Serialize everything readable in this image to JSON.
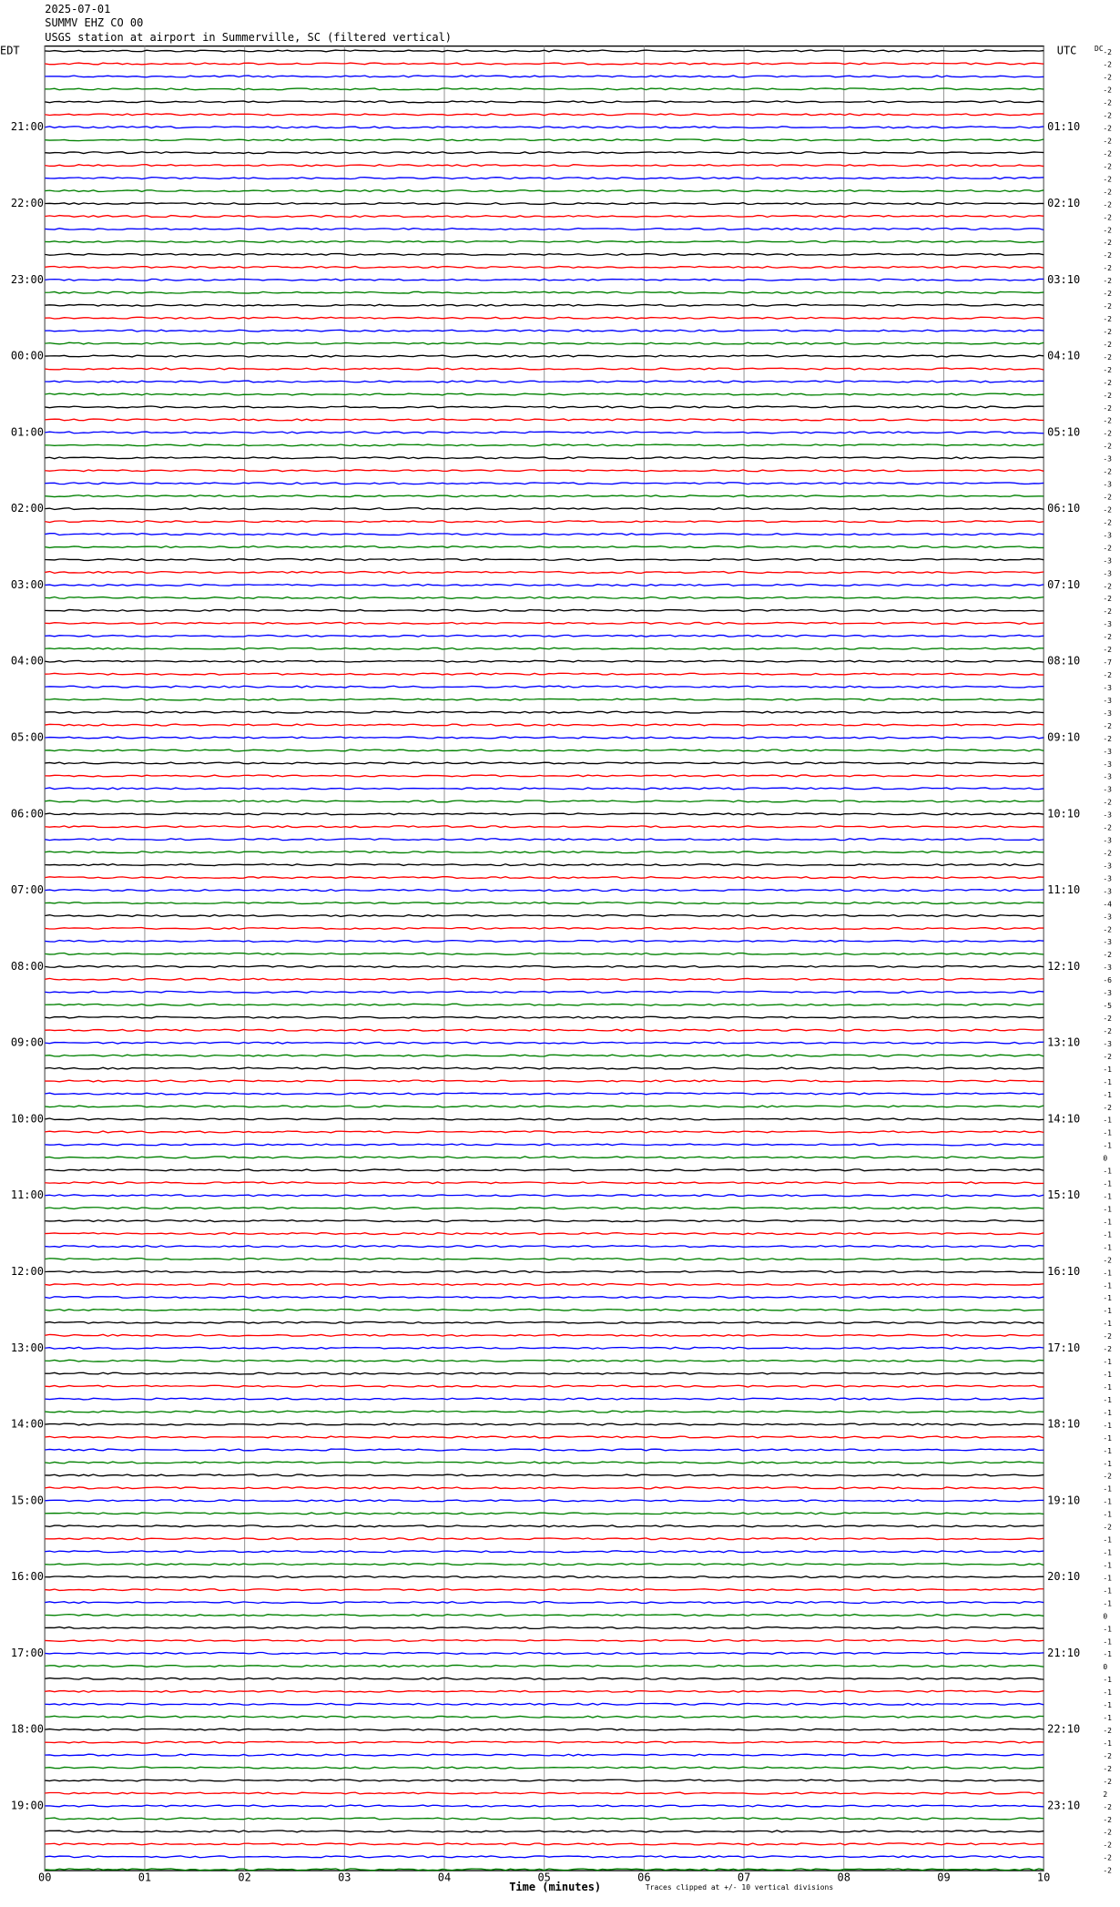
{
  "header": {
    "date": "2025-07-01",
    "station": "SUMMV EHZ CO 00",
    "description": "USGS station at airport in Summerville, SC (filtered vertical)"
  },
  "chart_data": {
    "type": "helicorder",
    "left_timezone": "EDT",
    "right_timezone": "UTC",
    "dc_label": "DC",
    "left_labels": [
      null,
      null,
      null,
      null,
      null,
      null,
      "21:00",
      null,
      null,
      null,
      null,
      null,
      "22:00",
      null,
      null,
      null,
      null,
      null,
      "23:00",
      null,
      null,
      null,
      null,
      null,
      "00:00",
      null,
      null,
      null,
      null,
      null,
      "01:00",
      null,
      null,
      null,
      null,
      null,
      "02:00",
      null,
      null,
      null,
      null,
      null,
      "03:00",
      null,
      null,
      null,
      null,
      null,
      "04:00",
      null,
      null,
      null,
      null,
      null,
      "05:00",
      null,
      null,
      null,
      null,
      null,
      "06:00",
      null,
      null,
      null,
      null,
      null,
      "07:00",
      null,
      null,
      null,
      null,
      null,
      "08:00",
      null,
      null,
      null,
      null,
      null,
      "09:00",
      null,
      null,
      null,
      null,
      null,
      "10:00",
      null,
      null,
      null,
      null,
      null,
      "11:00",
      null,
      null,
      null,
      null,
      null,
      "12:00",
      null,
      null,
      null,
      null,
      null,
      "13:00",
      null,
      null,
      null,
      null,
      null,
      "14:00",
      null,
      null,
      null,
      null,
      null,
      "15:00",
      null,
      null,
      null,
      null,
      null,
      "16:00",
      null,
      null,
      null,
      null,
      null,
      "17:00",
      null,
      null,
      null,
      null,
      null,
      "18:00",
      null,
      null,
      null,
      null,
      null,
      "19:00",
      null,
      null,
      null,
      null,
      null
    ],
    "right_labels": [
      null,
      null,
      null,
      null,
      null,
      null,
      "01:10",
      null,
      null,
      null,
      null,
      null,
      "02:10",
      null,
      null,
      null,
      null,
      null,
      "03:10",
      null,
      null,
      null,
      null,
      null,
      "04:10",
      null,
      null,
      null,
      null,
      null,
      "05:10",
      null,
      null,
      null,
      null,
      null,
      "06:10",
      null,
      null,
      null,
      null,
      null,
      "07:10",
      null,
      null,
      null,
      null,
      null,
      "08:10",
      null,
      null,
      null,
      null,
      null,
      "09:10",
      null,
      null,
      null,
      null,
      null,
      "10:10",
      null,
      null,
      null,
      null,
      null,
      "11:10",
      null,
      null,
      null,
      null,
      null,
      "12:10",
      null,
      null,
      null,
      null,
      null,
      "13:10",
      null,
      null,
      null,
      null,
      null,
      "14:10",
      null,
      null,
      null,
      null,
      null,
      "15:10",
      null,
      null,
      null,
      null,
      null,
      "16:10",
      null,
      null,
      null,
      null,
      null,
      "17:10",
      null,
      null,
      null,
      null,
      null,
      "18:10",
      null,
      null,
      null,
      null,
      null,
      "19:10",
      null,
      null,
      null,
      null,
      null,
      "20:10",
      null,
      null,
      null,
      null,
      null,
      "21:10",
      null,
      null,
      null,
      null,
      null,
      "22:10",
      null,
      null,
      null,
      null,
      null,
      "23:10",
      null,
      null,
      null,
      null,
      null
    ],
    "dc_offsets": [
      -2,
      -2,
      -2,
      -2,
      -2,
      -2,
      -2,
      -2,
      -2,
      -2,
      -2,
      -2,
      -2,
      -2,
      -2,
      -2,
      -2,
      -2,
      -2,
      -2,
      -2,
      -2,
      -2,
      -2,
      -2,
      -2,
      -2,
      -2,
      -2,
      -2,
      -2,
      -2,
      -3,
      -2,
      -3,
      -2,
      -2,
      -2,
      -3,
      -2,
      -3,
      -3,
      -2,
      -2,
      -2,
      -3,
      -2,
      -2,
      -7,
      -2,
      -3,
      -3,
      -3,
      -2,
      -2,
      -3,
      -3,
      -3,
      -3,
      -2,
      -3,
      -2,
      -3,
      -2,
      -3,
      -3,
      -3,
      -4,
      -3,
      -2,
      -3,
      -2,
      -3,
      -6,
      -3,
      -5,
      -2,
      -2,
      -3,
      -2,
      -1,
      -1,
      -1,
      -2,
      -1,
      -1,
      -1,
      0,
      -1,
      -1,
      -1,
      -1,
      -1,
      -1,
      -1,
      -2,
      -1,
      -1,
      -1,
      -1,
      -1,
      -2,
      -2,
      -1,
      -1,
      -1,
      -1,
      -1,
      -1,
      -1,
      -1,
      -1,
      -2,
      -1,
      -1,
      -1,
      -2,
      -1,
      -1,
      -1,
      -1,
      -1,
      -1,
      0,
      -1,
      -1,
      -1,
      0,
      -1,
      -1,
      -1,
      -1,
      -2,
      -1,
      -2,
      -2,
      -2,
      2,
      -2,
      -2,
      -2,
      -2,
      -2,
      -2
    ],
    "colors": [
      "#000000",
      "#ff0000",
      "#0000ff",
      "#008000"
    ],
    "xlim": [
      0,
      10
    ],
    "xticks": [
      {
        "value": 0,
        "label": "00"
      },
      {
        "value": 1,
        "label": "01"
      },
      {
        "value": 2,
        "label": "02"
      },
      {
        "value": 3,
        "label": "03"
      },
      {
        "value": 4,
        "label": "04"
      },
      {
        "value": 5,
        "label": "05"
      },
      {
        "value": 6,
        "label": "06"
      },
      {
        "value": 7,
        "label": "07"
      },
      {
        "value": 8,
        "label": "08"
      },
      {
        "value": 9,
        "label": "09"
      },
      10
    ],
    "xlabel": "Time (minutes)",
    "note": "Traces clipped at +/- 10 vertical divisions",
    "grid": true
  }
}
